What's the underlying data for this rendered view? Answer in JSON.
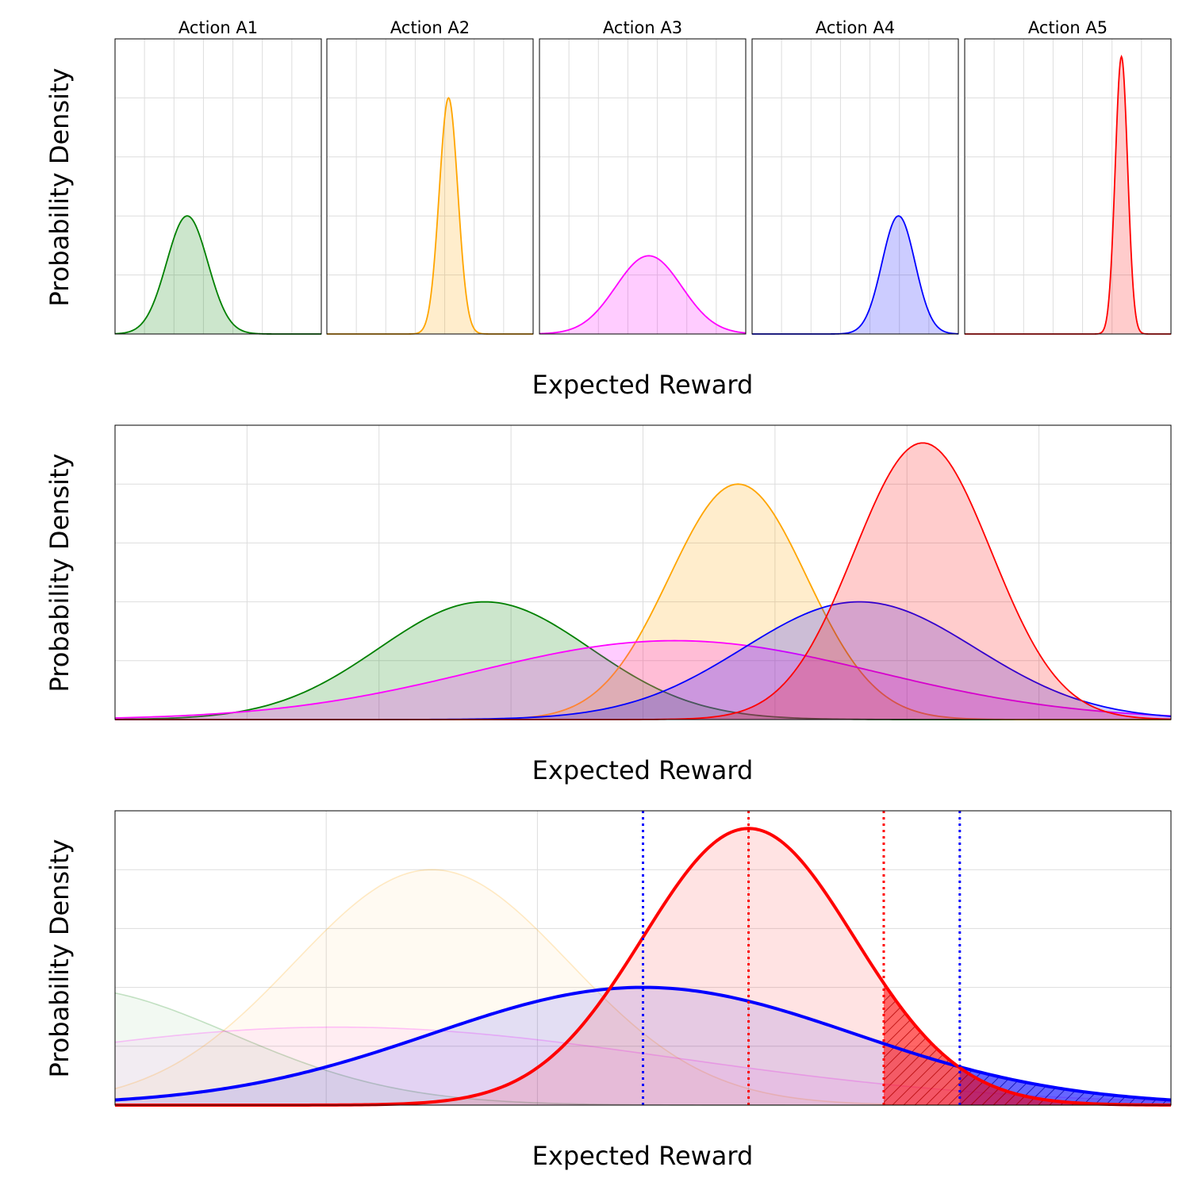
{
  "colors": {
    "A1": "#008000",
    "A2": "#ffa500",
    "A3": "#ff00ff",
    "A4": "#0000ff",
    "A5": "#ff0000"
  },
  "chart_data": [
    {
      "type": "area",
      "title": "",
      "xlabel": "Expected Reward",
      "ylabel": "Probability Density",
      "tick_labels_shown": false,
      "grid": true,
      "facets": [
        {
          "title": "Action A1",
          "color_key": "A1",
          "mean": 0.35,
          "sd": 0.1,
          "peak": 0.4
        },
        {
          "title": "Action A2",
          "color_key": "A2",
          "mean": 0.59,
          "sd": 0.045,
          "peak": 0.8
        },
        {
          "title": "Action A3",
          "color_key": "A3",
          "mean": 0.53,
          "sd": 0.16,
          "peak": 0.265
        },
        {
          "title": "Action A4",
          "color_key": "A4",
          "mean": 0.71,
          "sd": 0.08,
          "peak": 0.4
        },
        {
          "title": "Action A5",
          "color_key": "A5",
          "mean": 0.76,
          "sd": 0.03,
          "peak": 0.94
        }
      ],
      "xlim": [
        0,
        1
      ],
      "ylim": [
        0,
        1
      ]
    },
    {
      "type": "area",
      "title": "",
      "xlabel": "Expected Reward",
      "ylabel": "Probability Density",
      "tick_labels_shown": false,
      "grid": true,
      "series": [
        {
          "color_key": "A1",
          "mean": 0.35,
          "sd": 0.1,
          "peak": 0.4
        },
        {
          "color_key": "A2",
          "mean": 0.59,
          "sd": 0.065,
          "peak": 0.8
        },
        {
          "color_key": "A3",
          "mean": 0.53,
          "sd": 0.19,
          "peak": 0.268
        },
        {
          "color_key": "A4",
          "mean": 0.705,
          "sd": 0.11,
          "peak": 0.4
        },
        {
          "color_key": "A5",
          "mean": 0.765,
          "sd": 0.065,
          "peak": 0.94
        }
      ],
      "xlim": [
        0,
        1
      ],
      "ylim": [
        0,
        1
      ]
    },
    {
      "type": "area",
      "title": "",
      "xlabel": "Expected Reward",
      "ylabel": "Probability Density",
      "tick_labels_shown": false,
      "grid": true,
      "series": [
        {
          "color_key": "A1",
          "mean": -0.05,
          "sd": 0.16,
          "peak": 0.4,
          "faded": true
        },
        {
          "color_key": "A2",
          "mean": 0.3,
          "sd": 0.13,
          "peak": 0.8,
          "faded": true
        },
        {
          "color_key": "A3",
          "mean": 0.21,
          "sd": 0.32,
          "peak": 0.265,
          "faded": true
        },
        {
          "color_key": "A4",
          "mean": 0.5,
          "sd": 0.2,
          "peak": 0.4,
          "highlighted": true,
          "mean_line": 0.5,
          "threshold": 0.8,
          "tail_hatched": true
        },
        {
          "color_key": "A5",
          "mean": 0.6,
          "sd": 0.1,
          "peak": 0.94,
          "highlighted": true,
          "mean_line": 0.6,
          "threshold": 0.728,
          "tail_hatched": true
        }
      ],
      "xlim": [
        0,
        1
      ],
      "ylim": [
        0,
        1
      ]
    }
  ]
}
